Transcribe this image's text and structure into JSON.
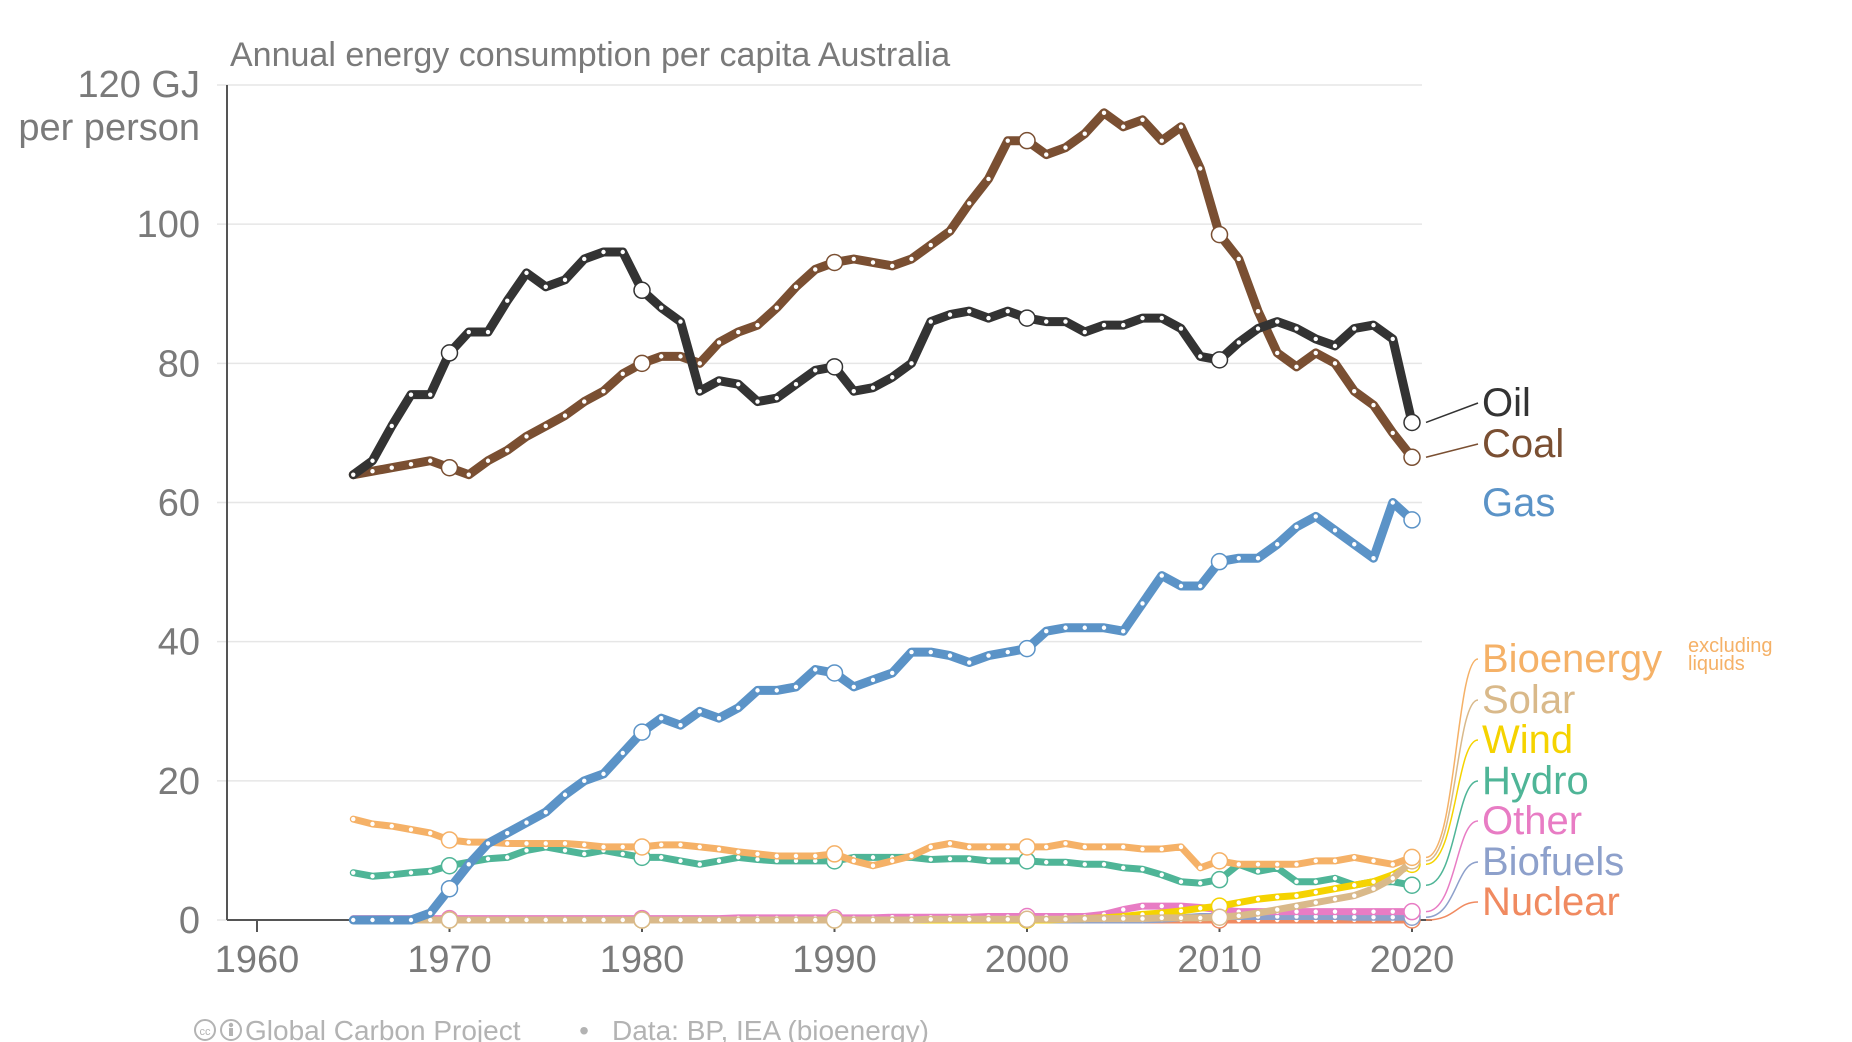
{
  "chart_data": {
    "type": "line",
    "title": "Annual energy consumption per capita Australia",
    "ylabel_line1": "120 GJ",
    "ylabel_line2": "per person",
    "ylim": [
      0,
      120
    ],
    "xlim": [
      1960,
      2020
    ],
    "yticks": [
      "0",
      "20",
      "40",
      "60",
      "80",
      "100"
    ],
    "ytick_values": [
      0,
      20,
      40,
      60,
      80,
      100
    ],
    "xticks": [
      "1960",
      "1970",
      "1980",
      "1990",
      "2000",
      "2010",
      "2020"
    ],
    "xtick_values": [
      1960,
      1970,
      1980,
      1990,
      2000,
      2010,
      2020
    ],
    "grid": true,
    "x": [
      1965,
      1966,
      1967,
      1968,
      1969,
      1970,
      1971,
      1972,
      1973,
      1974,
      1975,
      1976,
      1977,
      1978,
      1979,
      1980,
      1981,
      1982,
      1983,
      1984,
      1985,
      1986,
      1987,
      1988,
      1989,
      1990,
      1991,
      1992,
      1993,
      1994,
      1995,
      1996,
      1997,
      1998,
      1999,
      2000,
      2001,
      2002,
      2003,
      2004,
      2005,
      2006,
      2007,
      2008,
      2009,
      2010,
      2011,
      2012,
      2013,
      2014,
      2015,
      2016,
      2017,
      2018,
      2019,
      2020
    ],
    "series": [
      {
        "name": "Oil",
        "color": "#333333",
        "values": [
          64,
          66,
          71,
          75.5,
          75.5,
          81.5,
          84.5,
          84.5,
          89,
          93,
          91,
          92,
          95,
          96,
          96,
          90.5,
          88,
          86,
          76,
          77.5,
          77,
          74.5,
          75,
          77,
          79,
          79.5,
          76,
          76.5,
          78,
          80,
          86,
          87,
          87.5,
          86.5,
          87.5,
          86.5,
          86,
          86,
          84.5,
          85.5,
          85.5,
          86.5,
          86.5,
          85,
          81,
          80.5,
          83,
          85,
          86,
          85,
          83.5,
          82.5,
          85,
          85.5,
          83.5,
          71.5
        ]
      },
      {
        "name": "Coal",
        "color": "#7a4f32",
        "values": [
          64,
          64.5,
          65,
          65.5,
          66,
          65,
          64,
          66,
          67.5,
          69.5,
          71,
          72.5,
          74.5,
          76,
          78.5,
          80,
          81,
          81,
          80,
          83,
          84.5,
          85.5,
          88,
          91,
          93.5,
          94.5,
          95,
          94.5,
          94,
          95,
          97,
          99,
          103,
          106.5,
          112,
          112,
          110,
          111,
          113,
          116,
          114,
          115,
          112,
          114,
          108,
          98.5,
          95,
          87.5,
          81.5,
          79.5,
          81.5,
          80,
          76,
          74,
          70,
          66.5
        ]
      },
      {
        "name": "Gas",
        "color": "#5b93c7",
        "values": [
          0,
          0,
          0,
          0,
          1,
          4.5,
          8,
          11,
          12.5,
          14,
          15.5,
          18,
          20,
          21,
          24,
          27,
          29,
          28,
          30,
          29,
          30.5,
          33,
          33,
          33.5,
          36,
          35.5,
          33.5,
          34.5,
          35.5,
          38.5,
          38.5,
          38,
          37,
          38,
          38.5,
          39,
          41.5,
          42,
          42,
          42,
          41.5,
          45.5,
          49.5,
          48,
          48,
          51.5,
          52,
          52,
          54,
          56.5,
          58,
          56,
          54,
          52,
          60,
          57.5
        ]
      },
      {
        "name": "Bioenergy",
        "note": "excluding liquids",
        "color": "#f5b167",
        "values": [
          14.5,
          13.8,
          13.5,
          13,
          12.5,
          11.5,
          11.2,
          11.2,
          11,
          11,
          11,
          11,
          10.8,
          10.5,
          10.5,
          10.5,
          10.8,
          10.8,
          10.5,
          10.2,
          9.8,
          9.5,
          9.2,
          9.2,
          9.2,
          9.5,
          8.5,
          7.8,
          8.5,
          9.2,
          10.5,
          11,
          10.5,
          10.5,
          10.5,
          10.5,
          10.5,
          11,
          10.5,
          10.5,
          10.5,
          10.2,
          10.2,
          10.5,
          7.5,
          8.5,
          8,
          8,
          8,
          8,
          8.5,
          8.5,
          9,
          8.5,
          8,
          9
        ]
      },
      {
        "name": "Solar",
        "color": "#d9b98a",
        "values": [
          0,
          0,
          0,
          0,
          0,
          0,
          0,
          0,
          0,
          0,
          0,
          0,
          0,
          0,
          0,
          0,
          0,
          0,
          0,
          0,
          0,
          0,
          0,
          0,
          0,
          0,
          0,
          0,
          0,
          0,
          0.1,
          0.1,
          0.1,
          0.1,
          0.1,
          0.1,
          0.1,
          0.1,
          0.2,
          0.2,
          0.2,
          0.2,
          0.3,
          0.3,
          0.3,
          0.4,
          0.6,
          1,
          1.5,
          2,
          2.5,
          3,
          3.5,
          4.5,
          6,
          8.5
        ]
      },
      {
        "name": "Wind",
        "color": "#f5d300",
        "values": [
          0,
          0,
          0,
          0,
          0,
          0,
          0,
          0,
          0,
          0,
          0,
          0,
          0,
          0,
          0,
          0,
          0,
          0,
          0,
          0,
          0,
          0,
          0,
          0,
          0,
          0,
          0,
          0,
          0,
          0,
          0,
          0,
          0,
          0,
          0,
          0,
          0,
          0.1,
          0.2,
          0.3,
          0.5,
          0.8,
          1,
          1.3,
          1.7,
          2,
          2.5,
          3,
          3.3,
          3.5,
          4,
          4.5,
          5,
          5.5,
          6.5,
          8
        ]
      },
      {
        "name": "Hydro",
        "color": "#4fb597",
        "values": [
          6.8,
          6.3,
          6.5,
          6.8,
          7,
          7.8,
          8.3,
          8.8,
          9,
          10,
          10.5,
          10,
          9.5,
          10,
          9.5,
          9,
          9,
          8.5,
          8,
          8.5,
          9,
          8.7,
          8.5,
          8.5,
          8.5,
          8.5,
          9,
          9,
          9,
          9,
          8.7,
          8.8,
          8.8,
          8.5,
          8.5,
          8.5,
          8.3,
          8.3,
          8,
          8,
          7.5,
          7.3,
          6.5,
          5.5,
          5.3,
          5.8,
          8,
          7,
          7.5,
          5.5,
          5.5,
          6,
          5,
          5.5,
          5.5,
          5
        ]
      },
      {
        "name": "Other",
        "color": "#e87cc4",
        "values": [
          0.2,
          0.2,
          0.2,
          0.2,
          0.2,
          0.2,
          0.2,
          0.2,
          0.2,
          0.2,
          0.2,
          0.2,
          0.2,
          0.2,
          0.2,
          0.2,
          0.2,
          0.2,
          0.2,
          0.2,
          0.3,
          0.3,
          0.3,
          0.3,
          0.3,
          0.3,
          0.3,
          0.3,
          0.4,
          0.4,
          0.4,
          0.4,
          0.4,
          0.5,
          0.5,
          0.5,
          0.5,
          0.5,
          0.5,
          0.8,
          1.5,
          2,
          2,
          2,
          1.8,
          1.5,
          1.2,
          1.2,
          1.2,
          1.2,
          1.2,
          1.2,
          1.2,
          1.2,
          1.2,
          1.2
        ]
      },
      {
        "name": "Biofuels",
        "color": "#8da0cb",
        "values": [
          0,
          0,
          0,
          0,
          0,
          0,
          0,
          0,
          0,
          0,
          0,
          0,
          0,
          0,
          0,
          0,
          0,
          0,
          0,
          0,
          0,
          0,
          0,
          0,
          0,
          0,
          0,
          0,
          0,
          0,
          0,
          0,
          0,
          0,
          0,
          0,
          0,
          0,
          0,
          0,
          0,
          0,
          0.1,
          0.3,
          0.5,
          0.5,
          0.5,
          0.5,
          0.5,
          0.5,
          0.5,
          0.5,
          0.4,
          0.4,
          0.4,
          0.4
        ]
      },
      {
        "name": "Nuclear",
        "color": "#f08a60",
        "values": [
          0,
          0,
          0,
          0,
          0,
          0,
          0,
          0,
          0,
          0,
          0,
          0,
          0,
          0,
          0,
          0,
          0,
          0,
          0,
          0,
          0,
          0,
          0,
          0,
          0,
          0,
          0,
          0,
          0,
          0,
          0,
          0,
          0,
          0,
          0,
          0,
          0,
          0,
          0,
          0,
          0,
          0,
          0,
          0,
          0,
          0,
          0,
          0,
          0,
          0,
          0,
          0,
          0,
          0,
          0,
          0
        ]
      }
    ],
    "footer_credit": "Global Carbon Project",
    "footer_source": "Data: BP, IEA (bioenergy)",
    "footer_separator": "•",
    "footer_icons": [
      "cc-icon",
      "attribution-icon"
    ]
  }
}
